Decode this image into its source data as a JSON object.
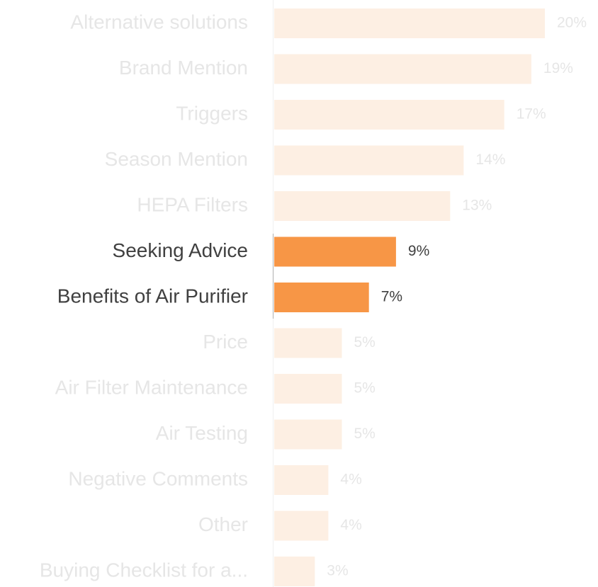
{
  "chart_data": {
    "type": "bar",
    "orientation": "horizontal",
    "categories": [
      "Alternative solutions",
      "Brand Mention",
      "Triggers",
      "Season Mention",
      "HEPA Filters",
      "Seeking Advice",
      "Benefits of Air Purifier",
      "Price",
      "Air Filter Maintenance",
      "Air Testing",
      "Negative Comments",
      "Other",
      "Buying Checklist for a..."
    ],
    "values": [
      20,
      19,
      17,
      14,
      13,
      9,
      7,
      5,
      5,
      5,
      4,
      4,
      3
    ],
    "value_labels": [
      "20%",
      "19%",
      "17%",
      "14%",
      "13%",
      "9%",
      "7%",
      "5%",
      "5%",
      "5%",
      "4%",
      "4%",
      "3%"
    ],
    "highlighted": [
      false,
      false,
      false,
      false,
      false,
      true,
      true,
      false,
      false,
      false,
      false,
      false,
      false
    ],
    "color": "#fdefe3",
    "highlight_color": "#f79646"
  }
}
